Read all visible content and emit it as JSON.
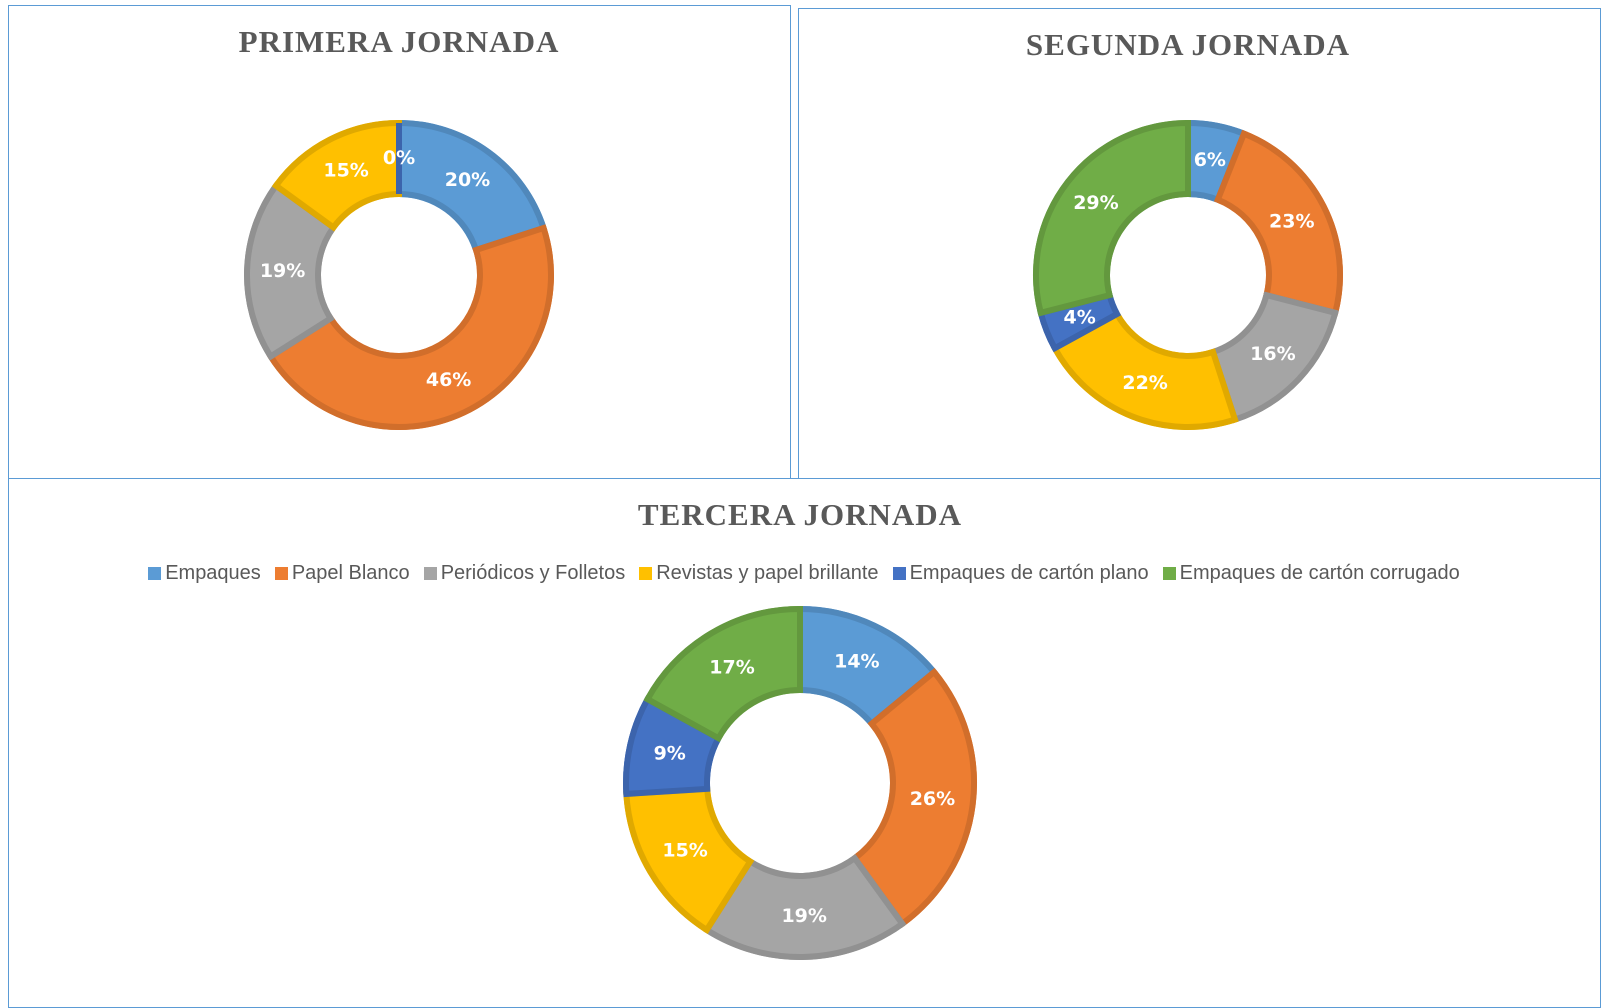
{
  "chart_data": [
    {
      "type": "donut",
      "title": "PRIMERA JORNADA",
      "values": [
        20,
        46,
        19,
        15,
        0
      ],
      "value_labels": [
        "20%",
        "46%",
        "19%",
        "15%",
        "0%"
      ],
      "colors": [
        "#5b9bd5",
        "#ed7d31",
        "#a5a5a5",
        "#ffc000",
        "#4472c4"
      ]
    },
    {
      "type": "donut",
      "title": "SEGUNDA JORNADA",
      "values": [
        6,
        23,
        16,
        22,
        4,
        29
      ],
      "value_labels": [
        "6%",
        "23%",
        "16%",
        "22%",
        "4%",
        "29%"
      ],
      "colors": [
        "#5b9bd5",
        "#ed7d31",
        "#a5a5a5",
        "#ffc000",
        "#4472c4",
        "#70ad47"
      ]
    },
    {
      "type": "donut",
      "title": "TERCERA JORNADA",
      "categories": [
        "Empaques",
        "Papel Blanco",
        "Periódicos y Folletos",
        "Revistas y papel brillante",
        "Empaques de cartón plano",
        "Empaques de cartón corrugado"
      ],
      "values": [
        14,
        26,
        19,
        15,
        9,
        17
      ],
      "value_labels": [
        "14%",
        "26%",
        "19%",
        "15%",
        "9%",
        "17%"
      ],
      "colors": [
        "#5b9bd5",
        "#ed7d31",
        "#a5a5a5",
        "#ffc000",
        "#4472c4",
        "#70ad47"
      ]
    }
  ]
}
